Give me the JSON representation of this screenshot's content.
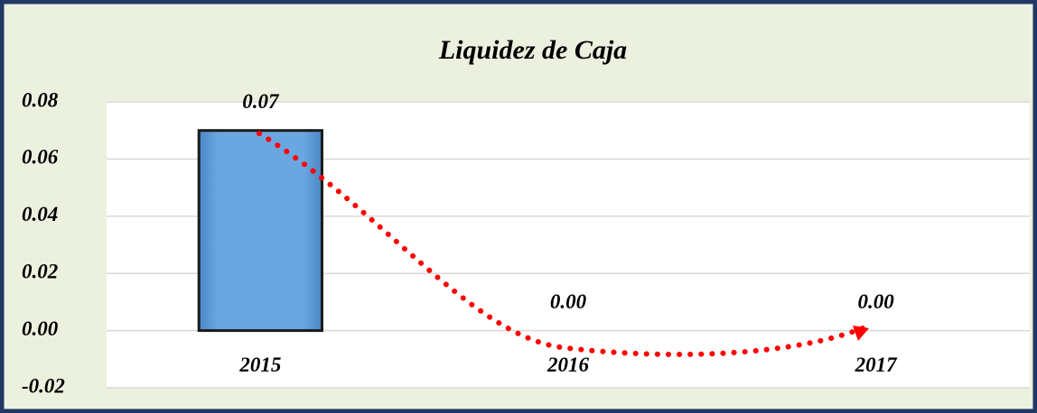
{
  "chart_data": {
    "type": "bar",
    "title": "Liquidez de Caja",
    "categories": [
      "2015",
      "2016",
      "2017"
    ],
    "values": [
      0.07,
      0,
      0
    ],
    "value_labels": [
      "0.07",
      "0.00",
      "0.00"
    ],
    "color": "#5b9bd5",
    "ylim": [
      -0.02,
      0.08
    ],
    "yticks": [
      -0.02,
      {
        "value": 0,
        "label": "0.00"
      },
      0.02,
      0.04,
      0.06,
      0.08
    ],
    "grid": true
  }
}
